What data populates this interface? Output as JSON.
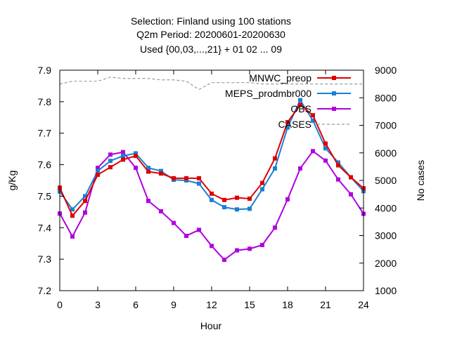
{
  "chart_data": {
    "type": "line",
    "title_lines": [
      "Selection: Finland using   100 stations",
      "Q2m   Period: 20200601-20200630",
      "Used {00,03,...,21} + 01 02 ... 09"
    ],
    "xlabel": "Hour",
    "ylabel": "g/Kg",
    "y2label": "No cases",
    "xlim": [
      0,
      24
    ],
    "ylim": [
      7.2,
      7.9
    ],
    "y2lim": [
      1000,
      9000
    ],
    "xticks": [
      0,
      3,
      6,
      9,
      12,
      15,
      18,
      21,
      24
    ],
    "yticks": [
      7.2,
      7.3,
      7.4,
      7.5,
      7.6,
      7.7,
      7.8,
      7.9
    ],
    "y2ticks": [
      1000,
      2000,
      3000,
      4000,
      5000,
      6000,
      7000,
      8000,
      9000
    ],
    "grid": false,
    "legend_position": "top-right",
    "x": [
      0,
      1,
      2,
      3,
      4,
      5,
      6,
      7,
      8,
      9,
      10,
      11,
      12,
      13,
      14,
      15,
      16,
      17,
      18,
      19,
      20,
      21,
      22,
      23,
      24
    ],
    "series": [
      {
        "name": "MNWC_preop",
        "color": "#dd0000",
        "axis": "y",
        "values": [
          7.527,
          7.438,
          7.485,
          7.568,
          7.592,
          7.616,
          7.628,
          7.578,
          7.572,
          7.557,
          7.557,
          7.557,
          7.508,
          7.488,
          7.495,
          7.492,
          7.542,
          7.62,
          7.735,
          7.79,
          7.757,
          7.667,
          7.598,
          7.56,
          7.525
        ]
      },
      {
        "name": "MEPS_prodmbr000",
        "color": "#1a7fd6",
        "axis": "y",
        "values": [
          7.515,
          7.458,
          7.5,
          7.58,
          7.612,
          7.628,
          7.636,
          7.59,
          7.58,
          7.552,
          7.55,
          7.54,
          7.488,
          7.465,
          7.458,
          7.46,
          7.522,
          7.588,
          7.718,
          7.805,
          7.74,
          7.652,
          7.607,
          7.56,
          7.516
        ]
      },
      {
        "name": "OBS",
        "color": "#b000e0",
        "axis": "y",
        "values": [
          7.445,
          7.372,
          7.448,
          7.59,
          7.632,
          7.64,
          7.59,
          7.485,
          7.452,
          7.415,
          7.374,
          7.393,
          7.342,
          7.298,
          7.328,
          7.333,
          7.345,
          7.4,
          7.49,
          7.588,
          7.643,
          7.613,
          7.553,
          7.506,
          7.444
        ]
      },
      {
        "name": "CASES",
        "color": "#999999",
        "axis": "y2",
        "dashed": true,
        "values": [
          8500,
          8600,
          8600,
          8600,
          8750,
          8700,
          8700,
          8700,
          8650,
          8650,
          8600,
          8300,
          8550,
          8550,
          8550,
          8550,
          8500,
          8500,
          8500,
          8500,
          8500,
          8500,
          8500,
          8500,
          8500
        ]
      }
    ]
  }
}
